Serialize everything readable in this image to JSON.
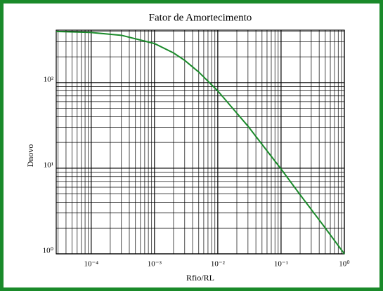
{
  "chart_data": {
    "type": "line",
    "title": "Fator de Amortecimento",
    "xlabel": "Rfio/RL",
    "ylabel": "Dnovo",
    "xscale": "log",
    "yscale": "log",
    "grid": true,
    "xlim": [
      2.8e-05,
      1
    ],
    "ylim": [
      1,
      410
    ],
    "xticks": [
      {
        "value": 0.0001,
        "label": "10⁻⁴"
      },
      {
        "value": 0.001,
        "label": "10⁻³"
      },
      {
        "value": 0.01,
        "label": "10⁻²"
      },
      {
        "value": 0.1,
        "label": "10⁻¹"
      },
      {
        "value": 1,
        "label": "10⁰"
      }
    ],
    "yticks": [
      {
        "value": 1,
        "label": "10⁰"
      },
      {
        "value": 10,
        "label": "10¹"
      },
      {
        "value": 100,
        "label": "10²"
      }
    ],
    "xticks_minor": [
      3e-05,
      4e-05,
      5e-05,
      6e-05,
      7e-05,
      8e-05,
      9e-05,
      0.0002,
      0.0003,
      0.0004,
      0.0005,
      0.0006,
      0.0007,
      0.0008,
      0.0009,
      0.002,
      0.003,
      0.004,
      0.005,
      0.006,
      0.007,
      0.008,
      0.009,
      0.02,
      0.03,
      0.04,
      0.05,
      0.06,
      0.07,
      0.08,
      0.09,
      0.2,
      0.3,
      0.4,
      0.5,
      0.6,
      0.7,
      0.8,
      0.9
    ],
    "yticks_minor": [
      2,
      3,
      4,
      5,
      6,
      7,
      8,
      9,
      20,
      30,
      40,
      50,
      60,
      70,
      80,
      90,
      200,
      300,
      400
    ],
    "x": [
      2.8e-05,
      0.0001,
      0.0003,
      0.001,
      0.002,
      0.003,
      0.005,
      0.01,
      0.02,
      0.03,
      0.05,
      0.1,
      0.2,
      0.3,
      0.5,
      1
    ],
    "series": [
      {
        "name": "Dnovo",
        "color": "#1a8a2a",
        "values": [
          396,
          385,
          357,
          286,
          222,
          182,
          133,
          80,
          44,
          31,
          19,
          9.8,
          4.9,
          3.3,
          2.0,
          1.0
        ]
      }
    ]
  }
}
